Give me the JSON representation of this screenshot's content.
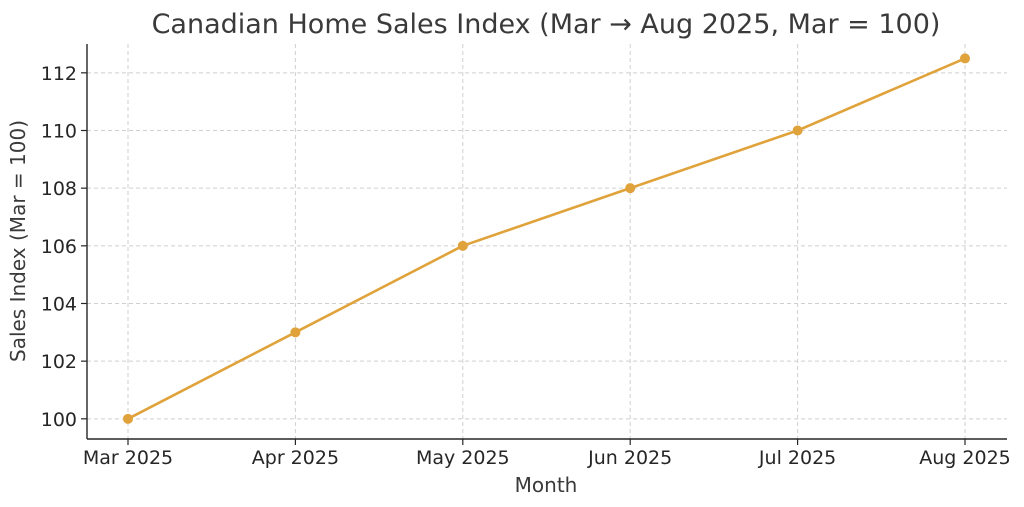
{
  "chart_data": {
    "type": "line",
    "title": "Canadian Home Sales Index (Mar → Aug 2025, Mar = 100)",
    "xlabel": "Month",
    "ylabel": "Sales Index (Mar = 100)",
    "categories": [
      "Mar 2025",
      "Apr 2025",
      "May 2025",
      "Jun 2025",
      "Jul 2025",
      "Aug 2025"
    ],
    "series": [
      {
        "values": [
          100,
          103,
          106,
          108,
          110,
          112.5
        ],
        "color": "#E0A23A"
      }
    ],
    "ylim": [
      99.3,
      113.0
    ],
    "yticks": [
      100,
      102,
      104,
      106,
      108,
      110,
      112
    ],
    "grid": true,
    "legend": "none"
  }
}
